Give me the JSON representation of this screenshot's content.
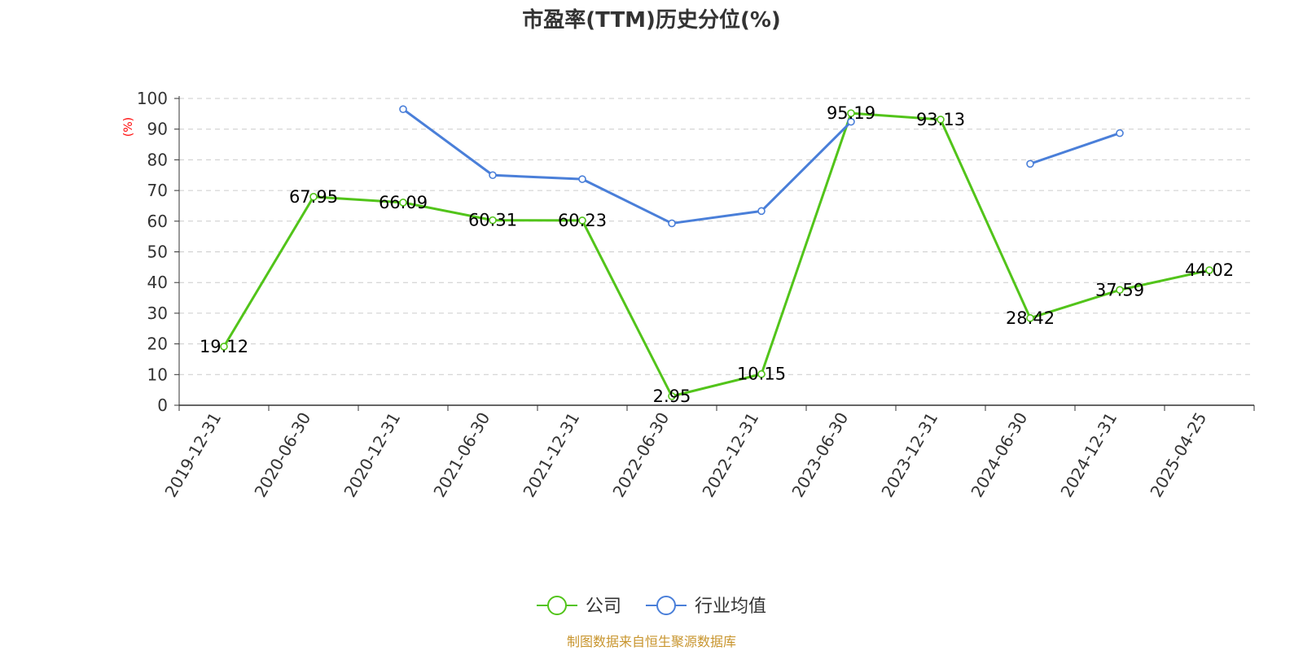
{
  "chart_data": {
    "type": "line",
    "title": "市盈率(TTM)历史分位(%)",
    "ylabel": "(%)",
    "ylim": [
      0,
      100
    ],
    "yticks": [
      0,
      10,
      20,
      30,
      40,
      50,
      60,
      70,
      80,
      90,
      100
    ],
    "grid": true,
    "legend_position": "bottom-center",
    "categories": [
      "2019-12-31",
      "2020-06-30",
      "2020-12-31",
      "2021-06-30",
      "2021-12-31",
      "2022-06-30",
      "2022-12-31",
      "2023-06-30",
      "2023-12-31",
      "2024-06-30",
      "2024-12-31",
      "2025-04-25"
    ],
    "series": [
      {
        "name": "公司",
        "color": "#52c41a",
        "show_labels": true,
        "values": [
          19.12,
          67.95,
          66.09,
          60.31,
          60.23,
          2.95,
          10.15,
          95.19,
          93.13,
          28.42,
          37.59,
          44.02
        ]
      },
      {
        "name": "行业均值",
        "color": "#4a7fd9",
        "show_labels": false,
        "values": [
          null,
          null,
          96.5,
          75.0,
          73.7,
          59.3,
          63.3,
          92.4,
          null,
          78.7,
          88.7,
          null
        ]
      }
    ]
  },
  "source": "制图数据来自恒生聚源数据库",
  "colors": {
    "axis": "#333333",
    "grid": "#cccccc",
    "ylabel": "#ff0000",
    "source": "#c8952e"
  }
}
